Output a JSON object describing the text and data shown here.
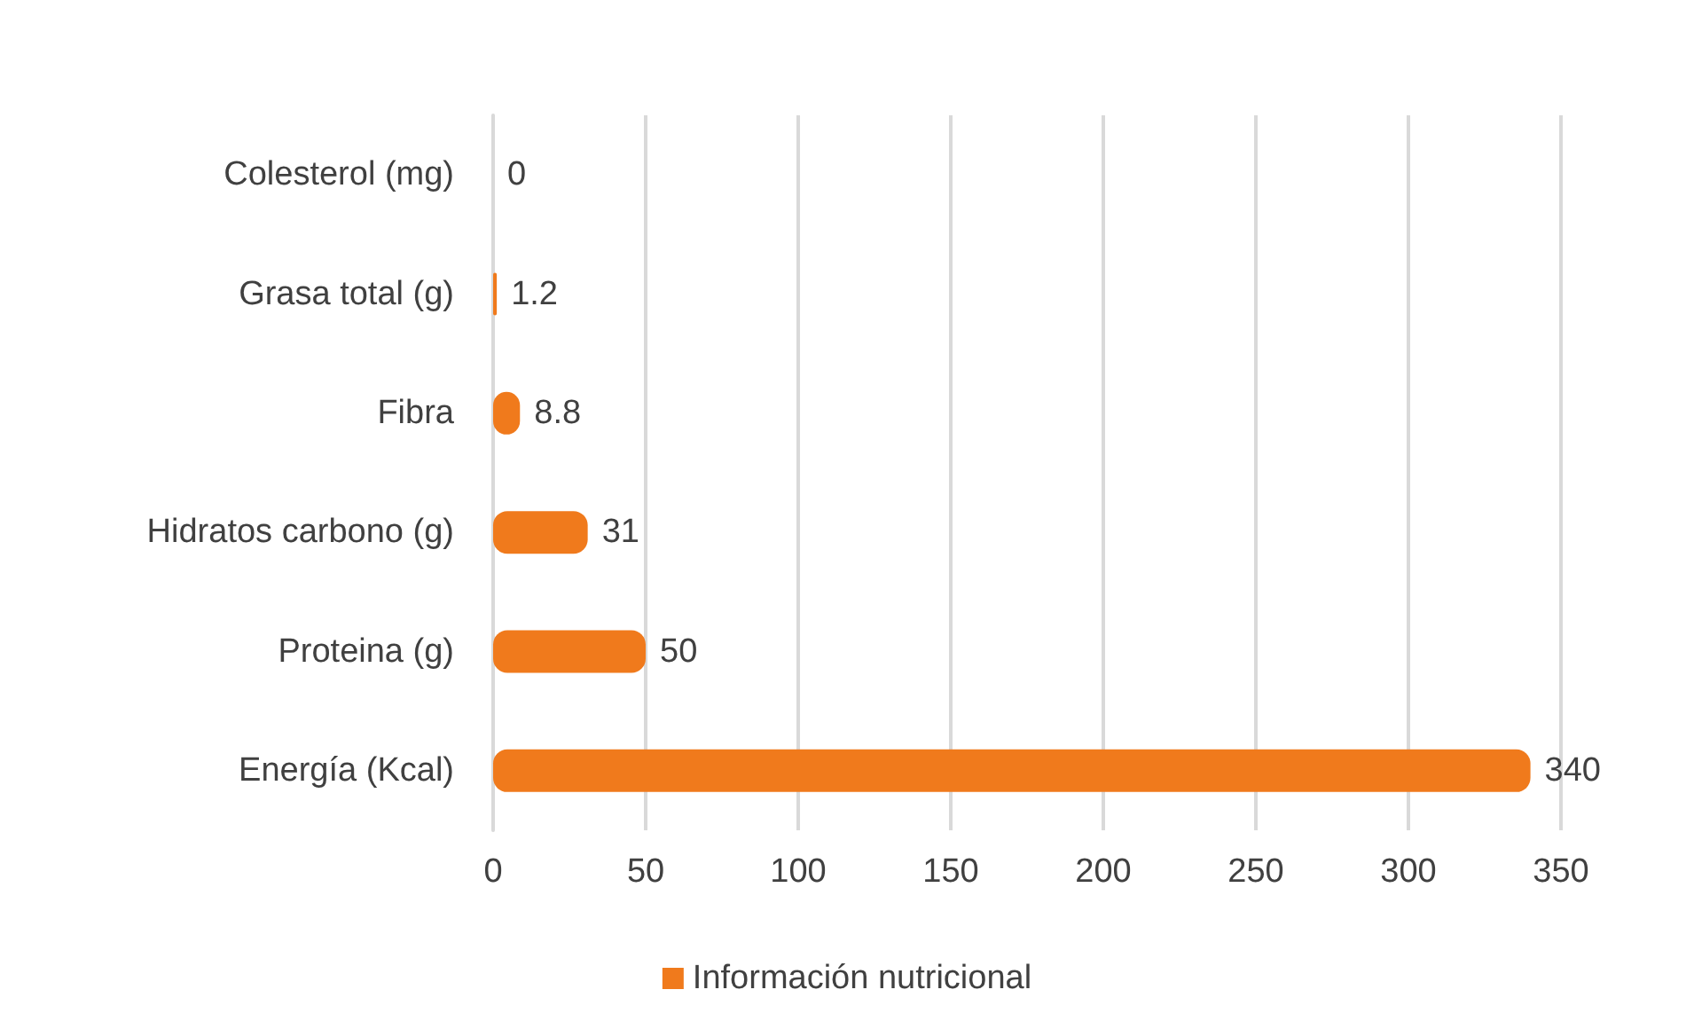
{
  "chart_data": {
    "type": "bar",
    "orientation": "horizontal",
    "categories": [
      "Colesterol (mg)",
      "Grasa total (g)",
      "Fibra",
      "Hidratos carbono (g)",
      "Proteina (g)",
      "Energía (Kcal)"
    ],
    "series": [
      {
        "name": "Información nutricional",
        "color": "#f07a1c",
        "values": [
          0,
          1.2,
          8.8,
          31,
          50,
          340
        ]
      }
    ],
    "xlim": [
      0,
      350
    ],
    "xticks": [
      0,
      50,
      100,
      150,
      200,
      250,
      300,
      350
    ],
    "grid": "x",
    "legend": "bottom",
    "data_labels": true
  }
}
